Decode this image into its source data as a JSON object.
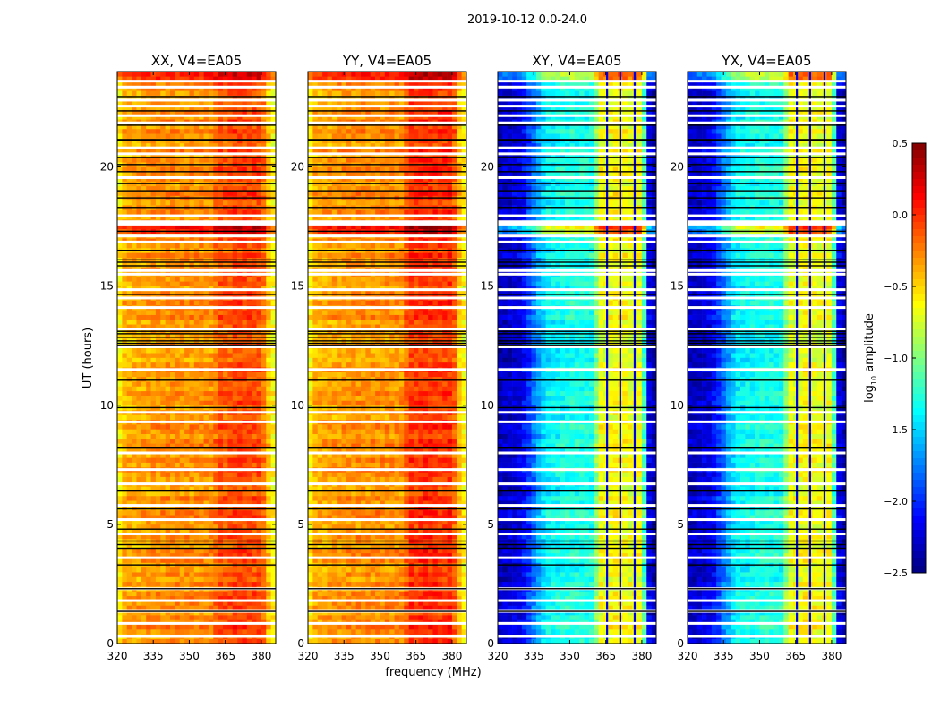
{
  "chart_data": {
    "type": "heatmap",
    "title": "2019-10-12 0.0-24.0",
    "xlabel": "frequency (MHz)",
    "ylabel": "UT (hours)",
    "xlim": [
      320,
      386
    ],
    "ylim": [
      0,
      24
    ],
    "xticks": [
      "320",
      "335",
      "350",
      "365",
      "380"
    ],
    "xtick_values": [
      320,
      335,
      350,
      365,
      380
    ],
    "yticks": [
      "0",
      "5",
      "10",
      "15",
      "20"
    ],
    "ytick_values": [
      0,
      5,
      10,
      15,
      20
    ],
    "colorbar": {
      "label_main": "log",
      "label_sub": "10",
      "label_rest": " amplitude",
      "range": [
        -2.5,
        0.5
      ],
      "ticks": [
        "0.5",
        "0.0",
        "−0.5",
        "−1.0",
        "−1.5",
        "−2.0",
        "−2.5"
      ],
      "tick_values": [
        0.5,
        0.0,
        -0.5,
        -1.0,
        -1.5,
        -2.0,
        -2.5
      ],
      "colormap": "jet"
    },
    "flag_color_white": "#ffffff",
    "flag_color_black": "#000000",
    "white_flag_hours": [
      23.6,
      23.35,
      22.8,
      22.55,
      22.15,
      21.85,
      20.8,
      20.55,
      19.55,
      17.95,
      17.7,
      17.6,
      17.1,
      16.85,
      15.65,
      15.5,
      14.85,
      14.5,
      14.1,
      13.2,
      12.45,
      11.5,
      9.7,
      9.3,
      8.0,
      7.3,
      6.7,
      5.8,
      5.2,
      4.6,
      3.6,
      2.3,
      1.8,
      1.35,
      0.85,
      0.3
    ],
    "black_flag_hours": [
      22.95,
      22.35,
      21.75,
      21.15,
      21.1,
      20.4,
      20.1,
      19.8,
      19.3,
      19.0,
      18.7,
      18.3,
      17.3,
      16.5,
      16.1,
      16.0,
      15.85,
      14.65,
      13.1,
      13.0,
      12.85,
      12.7,
      12.6,
      12.5,
      11.05,
      9.9,
      8.2,
      6.4,
      5.65,
      4.8,
      4.3,
      4.15,
      4.0,
      3.3,
      2.3,
      1.35
    ],
    "profile_freqs": [
      320,
      323,
      330,
      340,
      350,
      360,
      362,
      365,
      370,
      375,
      380,
      383,
      386
    ],
    "panels": [
      {
        "title": "XX, V4=EA05",
        "profile": [
          -0.65,
          -0.4,
          -0.35,
          -0.3,
          -0.3,
          -0.3,
          -0.1,
          -0.15,
          -0.05,
          -0.1,
          -0.1,
          -0.45,
          -0.7
        ],
        "rfi_stripes": []
      },
      {
        "title": "YY, V4=EA05",
        "profile": [
          -0.65,
          -0.4,
          -0.35,
          -0.3,
          -0.3,
          -0.3,
          0.0,
          -0.05,
          0.0,
          -0.05,
          0.0,
          -0.45,
          -0.7
        ],
        "rfi_stripes": []
      },
      {
        "title": "XY, V4=EA05",
        "profile": [
          -2.3,
          -2.3,
          -2.2,
          -1.4,
          -1.3,
          -1.3,
          -0.65,
          -0.7,
          -0.6,
          -0.7,
          -0.65,
          -2.2,
          -2.4
        ],
        "rfi_stripes": [
          365.5,
          371,
          377
        ]
      },
      {
        "title": "YX, V4=EA05",
        "profile": [
          -2.3,
          -2.3,
          -2.2,
          -1.4,
          -1.3,
          -1.3,
          -0.65,
          -0.7,
          -0.6,
          -0.7,
          -0.65,
          -2.2,
          -2.4
        ],
        "rfi_stripes": [
          365.5,
          371,
          377
        ]
      }
    ],
    "bright_bands": [
      {
        "hours": [
          17.2,
          17.55
        ],
        "boost": 0.4
      },
      {
        "hours": [
          23.7,
          24.0
        ],
        "boost": 0.25
      }
    ]
  }
}
